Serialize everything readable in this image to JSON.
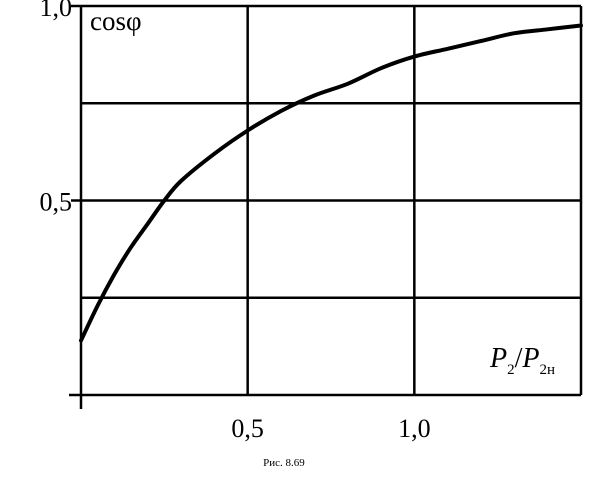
{
  "chart_data": {
    "type": "line",
    "title": "",
    "caption": "Рис. 8.69",
    "ylabel": "cosφ",
    "xlabel": {
      "base1": "P",
      "sub1": "2",
      "slash": "/",
      "base2": "P",
      "sub2": "2н"
    },
    "xlim": [
      0.0,
      1.5
    ],
    "ylim": [
      0.0,
      1.0
    ],
    "xticks": [
      0.5,
      1.0
    ],
    "xtick_labels": [
      "0,5",
      "1,0"
    ],
    "yticks": [
      0.5,
      1.0
    ],
    "ytick_labels": [
      "0,5",
      "1,0"
    ],
    "grid": true,
    "grid_x": [
      0.5,
      1.0,
      1.5
    ],
    "grid_y": [
      0.25,
      0.5,
      0.75,
      1.0
    ],
    "series": [
      {
        "x": [
          0.0,
          0.05,
          0.1,
          0.15,
          0.2,
          0.25,
          0.3,
          0.4,
          0.5,
          0.6,
          0.7,
          0.8,
          0.9,
          1.0,
          1.1,
          1.2,
          1.3,
          1.4,
          1.5
        ],
        "y": [
          0.14,
          0.23,
          0.31,
          0.38,
          0.44,
          0.5,
          0.55,
          0.62,
          0.68,
          0.73,
          0.77,
          0.8,
          0.84,
          0.87,
          0.89,
          0.91,
          0.93,
          0.94,
          0.95
        ]
      }
    ]
  }
}
